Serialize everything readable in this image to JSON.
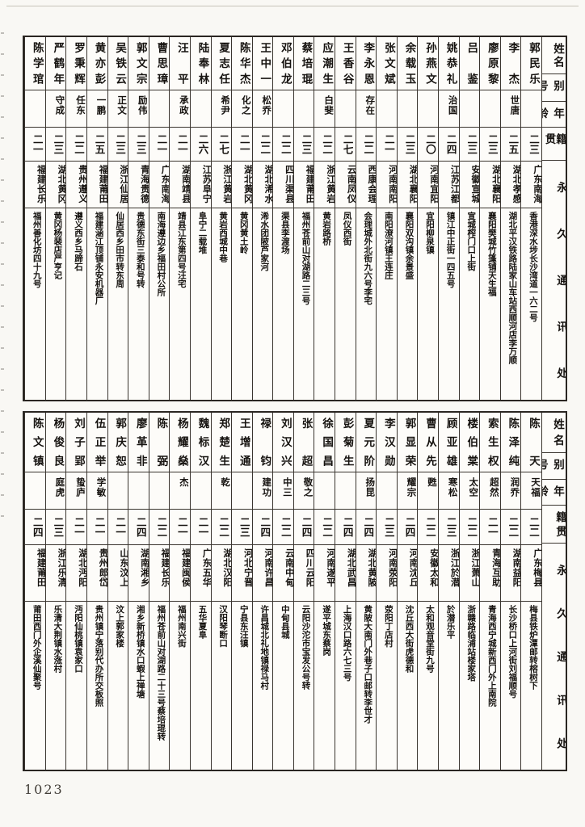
{
  "page_number": "1023",
  "headers": {
    "name": "姓名",
    "alias": "别号",
    "age": "年龄",
    "native": "籍贯",
    "address": "永久通讯处"
  },
  "tables": [
    {
      "people": [
        {
          "name": "郭民乐",
          "alias": "",
          "age": "二三",
          "native": "广东南海",
          "address": "香港深水埗长沙湾道一六二号"
        },
        {
          "name": "李杰",
          "alias": "世唐",
          "age": "二五",
          "native": "湖北孝感",
          "address": "湖北平汉铁路陆家山车站西顺河店李万顺"
        },
        {
          "name": "廖原黎",
          "alias": "",
          "age": "二三",
          "native": "湖北襄阳",
          "address": "襄阳樊城竹篷铺天生福"
        },
        {
          "name": "吕鉴",
          "alias": "",
          "age": "二三",
          "native": "安徽宣城",
          "address": "宣城榨门口上街"
        },
        {
          "name": "姚恭礼",
          "alias": "治国",
          "age": "二四",
          "native": "江苏江都",
          "address": "镇江中正街一四五号"
        },
        {
          "name": "孙燕文",
          "alias": "",
          "age": "二〇",
          "native": "河南宜阳",
          "address": "宜阳柳泉镇"
        },
        {
          "name": "余载玉",
          "alias": "",
          "age": "二三",
          "native": "湖北襄阳",
          "address": "襄阳双沟镇余景盛"
        },
        {
          "name": "张文斌",
          "alias": "",
          "age": "二一",
          "native": "河南南阳",
          "address": "南阳潦河镇王连庄"
        },
        {
          "name": "李永恩",
          "alias": "存在",
          "age": "二二",
          "native": "西康会理",
          "address": "会理城外北街九六号李宅"
        },
        {
          "name": "王香谷",
          "alias": "",
          "age": "二七",
          "native": "云南凤仪",
          "address": "凤仪西街"
        },
        {
          "name": "应潮生",
          "alias": "白斐",
          "age": "二二",
          "native": "浙江黄岩",
          "address": "黄岩路桥"
        },
        {
          "name": "蔡培琨",
          "alias": "",
          "age": "二三",
          "native": "福建莆田",
          "address": "福州苍前山对湖路二三号"
        },
        {
          "name": "邓伯龙",
          "alias": "",
          "age": "二二",
          "native": "四川渠县",
          "address": "渠县李渡场"
        },
        {
          "name": "王中一",
          "alias": "松乔",
          "age": "二二",
          "native": "湖北浠水",
          "address": "浠水团陂芦家河"
        },
        {
          "name": "陈华杰",
          "alias": "化之",
          "age": "二一",
          "native": "湖北黄冈",
          "address": "黄冈黄土岭"
        },
        {
          "name": "夏志任",
          "alias": "希尹",
          "age": "二七",
          "native": "浙江黄岩",
          "address": "黄岩西城中巷"
        },
        {
          "name": "陆奉林",
          "alias": "",
          "age": "二六",
          "native": "江苏阜宁",
          "address": "阜宁二载堆"
        },
        {
          "name": "汪平",
          "alias": "承政",
          "age": "二一",
          "native": "湖南靖县",
          "address": "靖县江东第四号汪宅"
        },
        {
          "name": "曹思璋",
          "alias": "",
          "age": "二一",
          "native": "广东南海",
          "address": "南海遵边乡福田村公所"
        },
        {
          "name": "郭文宗",
          "alias": "励伟",
          "age": "二三",
          "native": "青海贵德",
          "address": "贵德东街三泰和号转"
        },
        {
          "name": "吴铁云",
          "alias": "正文",
          "age": "二三",
          "native": "浙江仙居",
          "address": "仙居西乡田市转东周"
        },
        {
          "name": "黄亦彭",
          "alias": "一鹏",
          "age": "二五",
          "native": "福建莆田",
          "address": "福建涵江顶铺永安机器厂"
        },
        {
          "name": "罗秉辉",
          "alias": "任东",
          "age": "二二",
          "native": "贵州遵义",
          "address": "遵义西乡马蹄石"
        },
        {
          "name": "严鹤年",
          "alias": "守成",
          "age": "二三",
          "native": "湖北黄冈",
          "address": "黄冈杨裴店严亨记"
        },
        {
          "name": "陈学琯",
          "alias": "",
          "age": "二一",
          "native": "福建长乐",
          "address": "福州善化坊四十九号"
        }
      ]
    },
    {
      "people": [
        {
          "name": "陈天",
          "alias": "天福",
          "age": "二二",
          "native": "广东梅县",
          "address": "梅县铁炉潭邮转榕树下"
        },
        {
          "name": "陈泽纯",
          "alias": "润乔",
          "age": "二二",
          "native": "湖南益阳",
          "address": "长沙桥口上河街刘福顺号"
        },
        {
          "name": "索生权",
          "alias": "超然",
          "age": "二一",
          "native": "青海互助",
          "address": "青海西宁城新西门外上南院"
        },
        {
          "name": "楼伯棠",
          "alias": "太空",
          "age": "二二",
          "native": "浙江萧山",
          "address": "浙赣路临浦站楼家塔"
        },
        {
          "name": "顾亚雄",
          "alias": "寒松",
          "age": "二三",
          "native": "浙江於潜",
          "address": "於潜乐平"
        },
        {
          "name": "曹从先",
          "alias": "甦",
          "age": "二二",
          "native": "安徽太和",
          "address": "太和观音堂街九号"
        },
        {
          "name": "郭显荣",
          "alias": "耀宗",
          "age": "二四",
          "native": "河南沈丘",
          "address": "沈丘西大街虎德和"
        },
        {
          "name": "李汉勋",
          "alias": "",
          "age": "二三",
          "native": "河南荥阳",
          "address": "荥阳丁店村"
        },
        {
          "name": "夏元阶",
          "alias": "扬昆",
          "age": "二四",
          "native": "湖北黄陂",
          "address": "黄陂大南门外巷子口邮转李世才"
        },
        {
          "name": "彭菊生",
          "alias": "",
          "age": "二四",
          "native": "湖北武昌",
          "address": "上海汉口路六七三号"
        },
        {
          "name": "徐国昌",
          "alias": "",
          "age": "二二",
          "native": "河南遂平",
          "address": "遂平城东蔡岗"
        },
        {
          "name": "张超",
          "alias": "敬之",
          "age": "二四",
          "native": "四川云阳",
          "address": "云阳沙沱市宝发公号转"
        },
        {
          "name": "刘汉兴",
          "alias": "中三",
          "age": "二二",
          "native": "云南中甸",
          "address": "中甸县城"
        },
        {
          "name": "禄钧",
          "alias": "建功",
          "age": "二四",
          "native": "河南许昌",
          "address": "许昌城北礼地镇禄马村"
        },
        {
          "name": "王增通",
          "alias": "",
          "age": "二三",
          "native": "河北宁晋",
          "address": "宁县东汪镇"
        },
        {
          "name": "郑楚生",
          "alias": "乾",
          "age": "二二",
          "native": "湖北汉阳",
          "address": "汉阳琴断口"
        },
        {
          "name": "魏标汉",
          "alias": "",
          "age": "二一",
          "native": "广东五华",
          "address": "五华夏阜"
        },
        {
          "name": "杨耀燊",
          "alias": "杰",
          "age": "二一",
          "native": "福建闽侯",
          "address": "福州南兴街"
        },
        {
          "name": "陈弼",
          "alias": "",
          "age": "二二",
          "native": "福建长乐",
          "address": "福州苍前山对湖路二十三号蔡培琨转"
        },
        {
          "name": "廖革非",
          "alias": "",
          "age": "二四",
          "native": "湖南湘乡",
          "address": "湘乡新桥镇水口蝦上禅塘"
        },
        {
          "name": "郭庆恕",
          "alias": "",
          "age": "二一",
          "native": "山东汶上",
          "address": "汶上郭家楼"
        },
        {
          "name": "伍正举",
          "alias": "学敏",
          "age": "二一",
          "native": "贵州郎岱",
          "address": "贵州镇宁落别代办所交板照"
        },
        {
          "name": "刘子郢",
          "alias": "蛰庐",
          "age": "二一",
          "native": "湖北沔阳",
          "address": "沔阳仙桃镇袁家口"
        },
        {
          "name": "杨俊良",
          "alias": "庭虎",
          "age": "二三",
          "native": "浙江乐清",
          "address": "乐清大荆镇水涨村"
        },
        {
          "name": "陈文镇",
          "alias": "",
          "age": "二四",
          "native": "福建莆田",
          "address": "莆田西门外企溪仙聚号"
        }
      ]
    }
  ]
}
